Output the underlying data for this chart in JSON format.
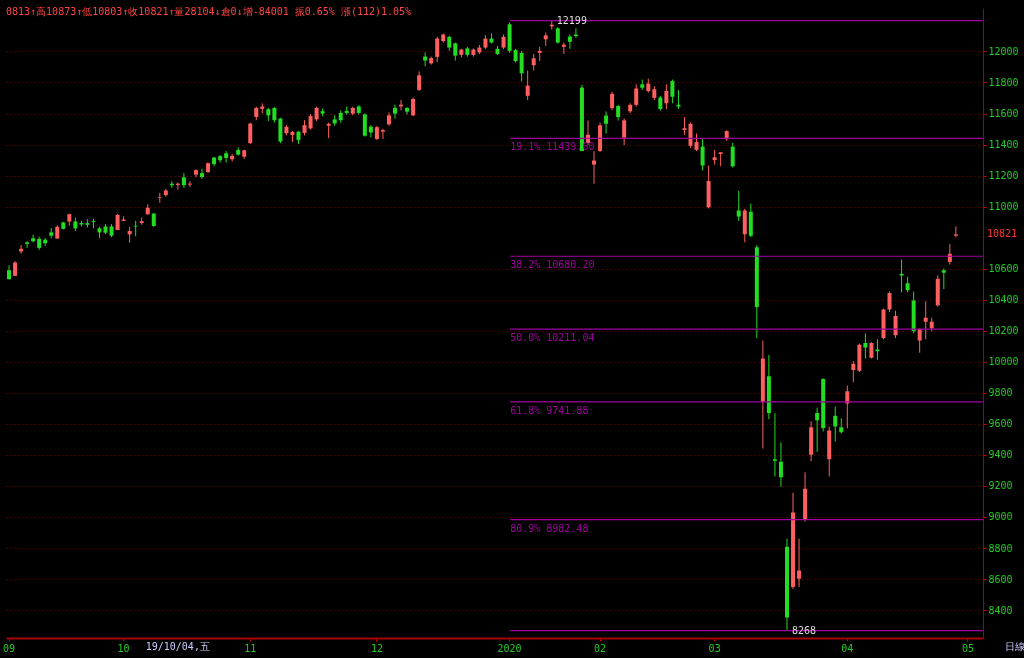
{
  "chart_data": {
    "type": "candlestick",
    "title": "0813↑高10873↑低10803↑收10821↑量28104↓倉0↓增-84001 振0.65% 漲(112)1.05%",
    "categories": [
      "09",
      null,
      null,
      null,
      null,
      null,
      null,
      null,
      null,
      null,
      null,
      null,
      null,
      null,
      null,
      null,
      null,
      null,
      null,
      "10",
      null,
      null,
      null,
      null,
      null,
      null,
      null,
      null,
      null,
      null,
      null,
      null,
      null,
      null,
      null,
      null,
      null,
      null,
      null,
      null,
      "11",
      null,
      null,
      null,
      null,
      null,
      null,
      null,
      null,
      null,
      null,
      null,
      null,
      null,
      null,
      null,
      null,
      null,
      null,
      null,
      null,
      "12",
      null,
      null,
      null,
      null,
      null,
      null,
      null,
      null,
      null,
      null,
      null,
      null,
      null,
      null,
      null,
      null,
      null,
      null,
      null,
      null,
      null,
      "2020",
      null,
      null,
      null,
      null,
      null,
      null,
      null,
      null,
      null,
      null,
      null,
      null,
      null,
      null,
      "02",
      null,
      null,
      null,
      null,
      null,
      null,
      null,
      null,
      null,
      null,
      null,
      null,
      null,
      null,
      null,
      null,
      null,
      null,
      "03",
      null,
      null,
      null,
      null,
      null,
      null,
      null,
      null,
      null,
      null,
      null,
      null,
      null,
      null,
      null,
      null,
      null,
      null,
      null,
      null,
      null,
      "04",
      null,
      null,
      null,
      null,
      null,
      null,
      null,
      null,
      null,
      null,
      null,
      null,
      null,
      null,
      null,
      null,
      null,
      null,
      null,
      "05",
      null,
      null
    ],
    "ohlc": [
      [
        10590,
        10622,
        10532,
        10532
      ],
      [
        10554,
        10649,
        10554,
        10639
      ],
      [
        10711,
        10753,
        10696,
        10728
      ],
      [
        10770,
        10777,
        10734,
        10760
      ],
      [
        10796,
        10819,
        10768,
        10777
      ],
      [
        10792,
        10806,
        10721,
        10734
      ],
      [
        10787,
        10798,
        10747,
        10764
      ],
      [
        10834,
        10862,
        10796,
        10813
      ],
      [
        10794,
        10879,
        10794,
        10870
      ],
      [
        10898,
        10902,
        10853,
        10857
      ],
      [
        10904,
        10955,
        10877,
        10951
      ],
      [
        10904,
        10930,
        10843,
        10860
      ],
      [
        10894,
        10909,
        10872,
        10885
      ],
      [
        10894,
        10919,
        10866,
        10883
      ],
      [
        10908,
        10923,
        10860,
        10902
      ],
      [
        10860,
        10870,
        10798,
        10834
      ],
      [
        10872,
        10887,
        10823,
        10832
      ],
      [
        10872,
        10887,
        10802,
        10813
      ],
      [
        10849,
        10953,
        10849,
        10947
      ],
      [
        10908,
        10938,
        10908,
        10917
      ],
      [
        10821,
        10870,
        10768,
        10843
      ],
      [
        10877,
        10909,
        10809,
        10872
      ],
      [
        10894,
        10930,
        10883,
        10906
      ],
      [
        10951,
        11015,
        10947,
        10993
      ],
      [
        10955,
        10959,
        10870,
        10875
      ],
      [
        11057,
        11089,
        11025,
        11061
      ],
      [
        11074,
        11114,
        11064,
        11104
      ],
      [
        11148,
        11163,
        11121,
        11138
      ],
      [
        11140,
        11155,
        11110,
        11148
      ],
      [
        11189,
        11216,
        11121,
        11138
      ],
      [
        11142,
        11163,
        11127,
        11148
      ],
      [
        11206,
        11240,
        11189,
        11235
      ],
      [
        11216,
        11244,
        11180,
        11191
      ],
      [
        11223,
        11284,
        11216,
        11280
      ],
      [
        11316,
        11320,
        11259,
        11274
      ],
      [
        11325,
        11333,
        11284,
        11299
      ],
      [
        11344,
        11359,
        11284,
        11314
      ],
      [
        11305,
        11339,
        11291,
        11327
      ],
      [
        11365,
        11382,
        11329,
        11335
      ],
      [
        11322,
        11367,
        11308,
        11363
      ],
      [
        11409,
        11541,
        11404,
        11535
      ],
      [
        11578,
        11644,
        11557,
        11636
      ],
      [
        11631,
        11665,
        11601,
        11646
      ],
      [
        11628,
        11636,
        11552,
        11588
      ],
      [
        11636,
        11641,
        11541,
        11557
      ],
      [
        11567,
        11573,
        11409,
        11420
      ],
      [
        11473,
        11525,
        11459,
        11515
      ],
      [
        11462,
        11488,
        11417,
        11481
      ],
      [
        11483,
        11488,
        11404,
        11430
      ],
      [
        11475,
        11557,
        11459,
        11525
      ],
      [
        11504,
        11596,
        11496,
        11583
      ],
      [
        11562,
        11644,
        11551,
        11636
      ],
      [
        11615,
        11633,
        11583,
        11599
      ],
      [
        11522,
        11541,
        11441,
        11533
      ],
      [
        11562,
        11588,
        11522,
        11536
      ],
      [
        11604,
        11620,
        11541,
        11557
      ],
      [
        11617,
        11646,
        11594,
        11604
      ],
      [
        11599,
        11644,
        11588,
        11636
      ],
      [
        11646,
        11654,
        11594,
        11604
      ],
      [
        11594,
        11601,
        11451,
        11457
      ],
      [
        11515,
        11525,
        11446,
        11478
      ],
      [
        11436,
        11520,
        11430,
        11512
      ],
      [
        11483,
        11501,
        11436,
        11493
      ],
      [
        11530,
        11607,
        11520,
        11588
      ],
      [
        11636,
        11657,
        11567,
        11599
      ],
      [
        11646,
        11688,
        11620,
        11657
      ],
      [
        11636,
        11641,
        11594,
        11612
      ],
      [
        11588,
        11702,
        11583,
        11694
      ],
      [
        11752,
        11872,
        11746,
        11846
      ],
      [
        11967,
        11994,
        11904,
        11941
      ],
      [
        11923,
        11967,
        11915,
        11957
      ],
      [
        11965,
        12094,
        11931,
        12083
      ],
      [
        12067,
        12115,
        12057,
        12109
      ],
      [
        12094,
        12099,
        12004,
        12025
      ],
      [
        12052,
        12057,
        11941,
        11973
      ],
      [
        11978,
        12017,
        11962,
        12012
      ],
      [
        12020,
        12030,
        11967,
        11978
      ],
      [
        11978,
        12020,
        11967,
        12012
      ],
      [
        11994,
        12041,
        11983,
        12025
      ],
      [
        12025,
        12104,
        12017,
        12083
      ],
      [
        12083,
        12115,
        12052,
        12057
      ],
      [
        12017,
        12036,
        11978,
        11983
      ],
      [
        12025,
        12109,
        12015,
        12094
      ],
      [
        12175,
        12188,
        11991,
        12004
      ],
      [
        12009,
        12017,
        11930,
        11938
      ],
      [
        11991,
        12004,
        11806,
        11859
      ],
      [
        11714,
        11877,
        11687,
        11780
      ],
      [
        11911,
        11983,
        11877,
        11956
      ],
      [
        11991,
        12030,
        11938,
        12004
      ],
      [
        12078,
        12122,
        12035,
        12104
      ],
      [
        12162,
        12199,
        12141,
        12172
      ],
      [
        12149,
        12157,
        12051,
        12057
      ],
      [
        12030,
        12057,
        11983,
        12043
      ],
      [
        12096,
        12109,
        12017,
        12062
      ],
      [
        12109,
        12149,
        12088,
        12099
      ],
      [
        11767,
        11785,
        11358,
        11358
      ],
      [
        11410,
        11555,
        11397,
        11463
      ],
      [
        11271,
        11358,
        11147,
        11297
      ],
      [
        11358,
        11542,
        11353,
        11524
      ],
      [
        11587,
        11613,
        11471,
        11534
      ],
      [
        11635,
        11740,
        11621,
        11727
      ],
      [
        11648,
        11656,
        11555,
        11577
      ],
      [
        11445,
        11569,
        11397,
        11556
      ],
      [
        11614,
        11666,
        11603,
        11656
      ],
      [
        11656,
        11788,
        11645,
        11761
      ],
      [
        11788,
        11819,
        11753,
        11766
      ],
      [
        11745,
        11825,
        11735,
        11793
      ],
      [
        11701,
        11777,
        11687,
        11756
      ],
      [
        11703,
        11714,
        11619,
        11629
      ],
      [
        11666,
        11788,
        11629,
        11745
      ],
      [
        11809,
        11819,
        11666,
        11708
      ],
      [
        11656,
        11751,
        11629,
        11645
      ],
      [
        11494,
        11577,
        11463,
        11505
      ],
      [
        11392,
        11542,
        11379,
        11534
      ],
      [
        11366,
        11471,
        11358,
        11416
      ],
      [
        11387,
        11437,
        11234,
        11265
      ],
      [
        10996,
        11265,
        10988,
        11165
      ],
      [
        11300,
        11366,
        11271,
        11318
      ],
      [
        11339,
        11350,
        11260,
        11350
      ],
      [
        11434,
        11492,
        11424,
        11487
      ],
      [
        11387,
        11410,
        11252,
        11260
      ],
      [
        10975,
        11102,
        10907,
        10936
      ],
      [
        10822,
        10986,
        10770,
        10975
      ],
      [
        10967,
        11020,
        10804,
        10812
      ],
      [
        10738,
        10751,
        10153,
        10353
      ],
      [
        9741,
        10137,
        9441,
        10021
      ],
      [
        9907,
        10044,
        9630,
        9670
      ],
      [
        9372,
        9668,
        9261,
        9362
      ],
      [
        9356,
        9480,
        9195,
        9256
      ],
      [
        8808,
        8860,
        8268,
        8352
      ],
      [
        8549,
        9156,
        8536,
        9029
      ],
      [
        8602,
        8860,
        8549,
        8655
      ],
      [
        8984,
        9288,
        8971,
        9182
      ],
      [
        9401,
        9617,
        9359,
        9578
      ],
      [
        9670,
        9704,
        9420,
        9623
      ],
      [
        9889,
        9894,
        9551,
        9573
      ],
      [
        9372,
        9583,
        9261,
        9557
      ],
      [
        9652,
        9710,
        9486,
        9583
      ],
      [
        9578,
        9636,
        9538,
        9546
      ],
      [
        9731,
        9847,
        9572,
        9810
      ],
      [
        9947,
        10005,
        9868,
        9987
      ],
      [
        9942,
        10118,
        9934,
        10110
      ],
      [
        10121,
        10184,
        10021,
        10092
      ],
      [
        10026,
        10126,
        10021,
        10121
      ],
      [
        10079,
        10145,
        10013,
        10068
      ],
      [
        10153,
        10342,
        10145,
        10337
      ],
      [
        10337,
        10453,
        10321,
        10443
      ],
      [
        10171,
        10329,
        10153,
        10295
      ],
      [
        10567,
        10659,
        10448,
        10556
      ],
      [
        10506,
        10548,
        10448,
        10461
      ],
      [
        10395,
        10453,
        10184,
        10197
      ],
      [
        10137,
        10216,
        10058,
        10211
      ],
      [
        10258,
        10390,
        10145,
        10284
      ],
      [
        10216,
        10284,
        10197,
        10258
      ],
      [
        10364,
        10558,
        10356,
        10535
      ],
      [
        10590,
        10601,
        10469,
        10574
      ],
      [
        10643,
        10759,
        10627,
        10696
      ],
      [
        10813,
        10873,
        10803,
        10821
      ],
      null,
      null,
      null,
      null
    ],
    "ylim": [
      8220,
      12280
    ],
    "yticks": [
      8400,
      8600,
      8800,
      9000,
      9200,
      9400,
      9600,
      9800,
      10000,
      10200,
      10400,
      10600,
      11000,
      11200,
      11400,
      11600,
      11800,
      12000
    ],
    "grid": "y",
    "ref_lines": [
      {
        "axis": "y",
        "value": 12199,
        "label": null,
        "color": "#a000a0"
      },
      {
        "axis": "y",
        "value": 11439.6,
        "label": "19.1% 11439.60",
        "color": "#a000a0"
      },
      {
        "axis": "y",
        "value": 10680.2,
        "label": "38.2% 10680.20",
        "color": "#a000a0"
      },
      {
        "axis": "y",
        "value": 10211.04,
        "label": "50.0% 10211.04",
        "color": "#a000a0"
      },
      {
        "axis": "y",
        "value": 9741.88,
        "label": "61.8% 9741.88",
        "color": "#a000a0"
      },
      {
        "axis": "y",
        "value": 8982.48,
        "label": "80.9% 8982.48",
        "color": "#a000a0"
      },
      {
        "axis": "y",
        "value": 8268,
        "label": null,
        "color": "#a000a0"
      }
    ],
    "annotations": [
      {
        "text": "12199",
        "y": 12199
      },
      {
        "text": "8268",
        "y": 8268
      },
      "10821",
      "19/10/04,五",
      "日線"
    ]
  }
}
